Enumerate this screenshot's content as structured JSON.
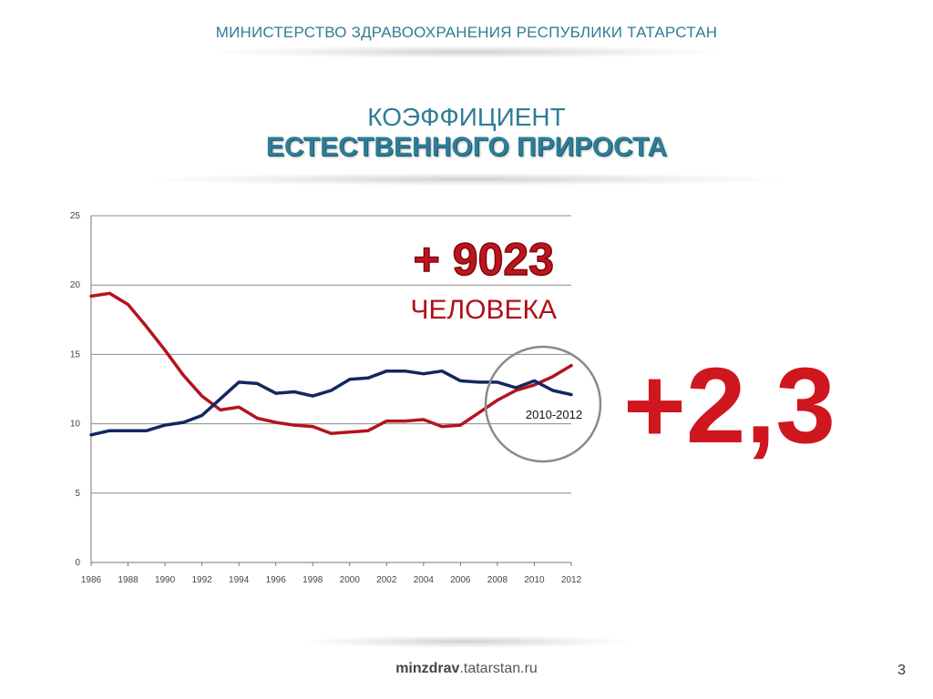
{
  "header": {
    "ministry": "МИНИСТЕРСТВО ЗДРАВООХРАНЕНИЯ РЕСПУБЛИКИ ТАТАРСТАН"
  },
  "title": {
    "line1": "КОЭФФИЦИЕНТ",
    "line2": "ЕСТЕСТВЕННОГО ПРИРОСТА"
  },
  "highlight": {
    "number": "+ 9023",
    "unit": "ЧЕЛОВЕКА",
    "big_value": "+2,3",
    "circle_label": "2010-2012"
  },
  "chart_data": {
    "type": "line",
    "x": [
      1986,
      1987,
      1988,
      1989,
      1990,
      1991,
      1992,
      1993,
      1994,
      1995,
      1996,
      1997,
      1998,
      1999,
      2000,
      2001,
      2002,
      2003,
      2004,
      2005,
      2006,
      2007,
      2008,
      2009,
      2010,
      2011,
      2012
    ],
    "x_tick_labels": [
      "1986",
      "1988",
      "1990",
      "1992",
      "1994",
      "1996",
      "1998",
      "2000",
      "2002",
      "2004",
      "2006",
      "2008",
      "2010",
      "2012"
    ],
    "y_tick_labels": [
      "0",
      "5",
      "10",
      "15",
      "20",
      "25"
    ],
    "ylim": [
      0,
      25
    ],
    "grid": true,
    "series": [
      {
        "color": "#b3141c",
        "values": [
          19.2,
          19.4,
          18.6,
          17.0,
          15.3,
          13.5,
          12.0,
          11.0,
          11.2,
          10.4,
          10.1,
          9.9,
          9.8,
          9.3,
          9.4,
          9.5,
          10.2,
          10.2,
          10.3,
          9.8,
          9.9,
          10.8,
          11.7,
          12.4,
          12.8,
          13.4,
          14.2
        ]
      },
      {
        "color": "#12275e",
        "values": [
          9.2,
          9.5,
          9.5,
          9.5,
          9.9,
          10.1,
          10.6,
          11.8,
          13.0,
          12.9,
          12.2,
          12.3,
          12.0,
          12.4,
          13.2,
          13.3,
          13.8,
          13.8,
          13.6,
          13.8,
          13.1,
          13.0,
          13.0,
          12.6,
          13.1,
          12.4,
          12.1
        ]
      }
    ]
  },
  "footer": {
    "site_bold": "minzdrav",
    "site_rest": ".tatarstan.ru"
  },
  "page": {
    "number": "3"
  }
}
